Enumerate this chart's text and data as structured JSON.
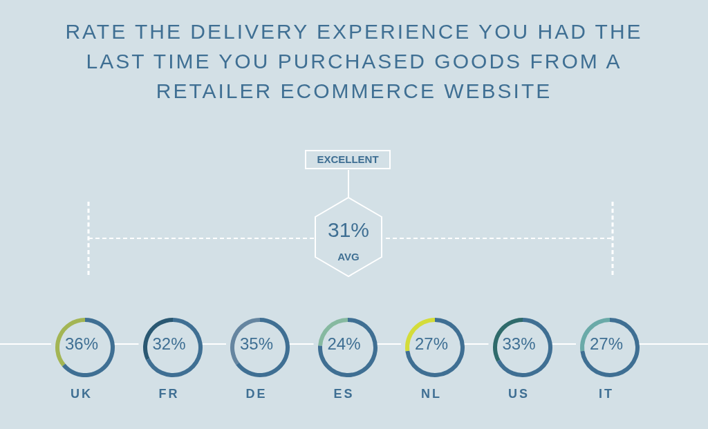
{
  "chart_data": [
    {
      "type": "other",
      "title": "RATE THE DELIVERY EXPERIENCE YOU HAD THE LAST TIME YOU PURCHASED GOODS FROM A RETAILER ECOMMERCE WEBSITE",
      "annotations": [
        "EXCELLENT",
        "31%",
        "AVG"
      ]
    },
    {
      "type": "donut",
      "title": "UK",
      "categories": [
        null,
        null
      ],
      "values": [
        36,
        64
      ],
      "colors": [
        "#a3b554",
        "#3f6f93"
      ],
      "value_labels": [
        "36%",
        null
      ]
    },
    {
      "type": "donut",
      "title": "FR",
      "categories": [
        null,
        null
      ],
      "values": [
        32,
        68
      ],
      "colors": [
        "#2a5872",
        "#3f6f93"
      ],
      "value_labels": [
        "32%",
        null
      ]
    },
    {
      "type": "donut",
      "title": "DE",
      "categories": [
        null,
        null
      ],
      "values": [
        35,
        65
      ],
      "colors": [
        "#6585a0",
        "#3f6f93"
      ],
      "value_labels": [
        "35%",
        null
      ]
    },
    {
      "type": "donut",
      "title": "ES",
      "categories": [
        null,
        null
      ],
      "values": [
        24,
        76
      ],
      "colors": [
        "#86b9a0",
        "#3f6f93"
      ],
      "value_labels": [
        "24%",
        null
      ]
    },
    {
      "type": "donut",
      "title": "NL",
      "categories": [
        null,
        null
      ],
      "values": [
        27,
        73
      ],
      "colors": [
        "#d4dc3a",
        "#3f6f93"
      ],
      "value_labels": [
        "27%",
        null
      ]
    },
    {
      "type": "donut",
      "title": "US",
      "categories": [
        null,
        null
      ],
      "values": [
        33,
        67
      ],
      "colors": [
        "#2f6b6b",
        "#3f6f93"
      ],
      "value_labels": [
        "33%",
        null
      ]
    },
    {
      "type": "donut",
      "title": "IT",
      "categories": [
        null,
        null
      ],
      "values": [
        27,
        73
      ],
      "colors": [
        "#6aaaa8",
        "#3f6f93"
      ],
      "value_labels": [
        "27%",
        null
      ]
    }
  ]
}
